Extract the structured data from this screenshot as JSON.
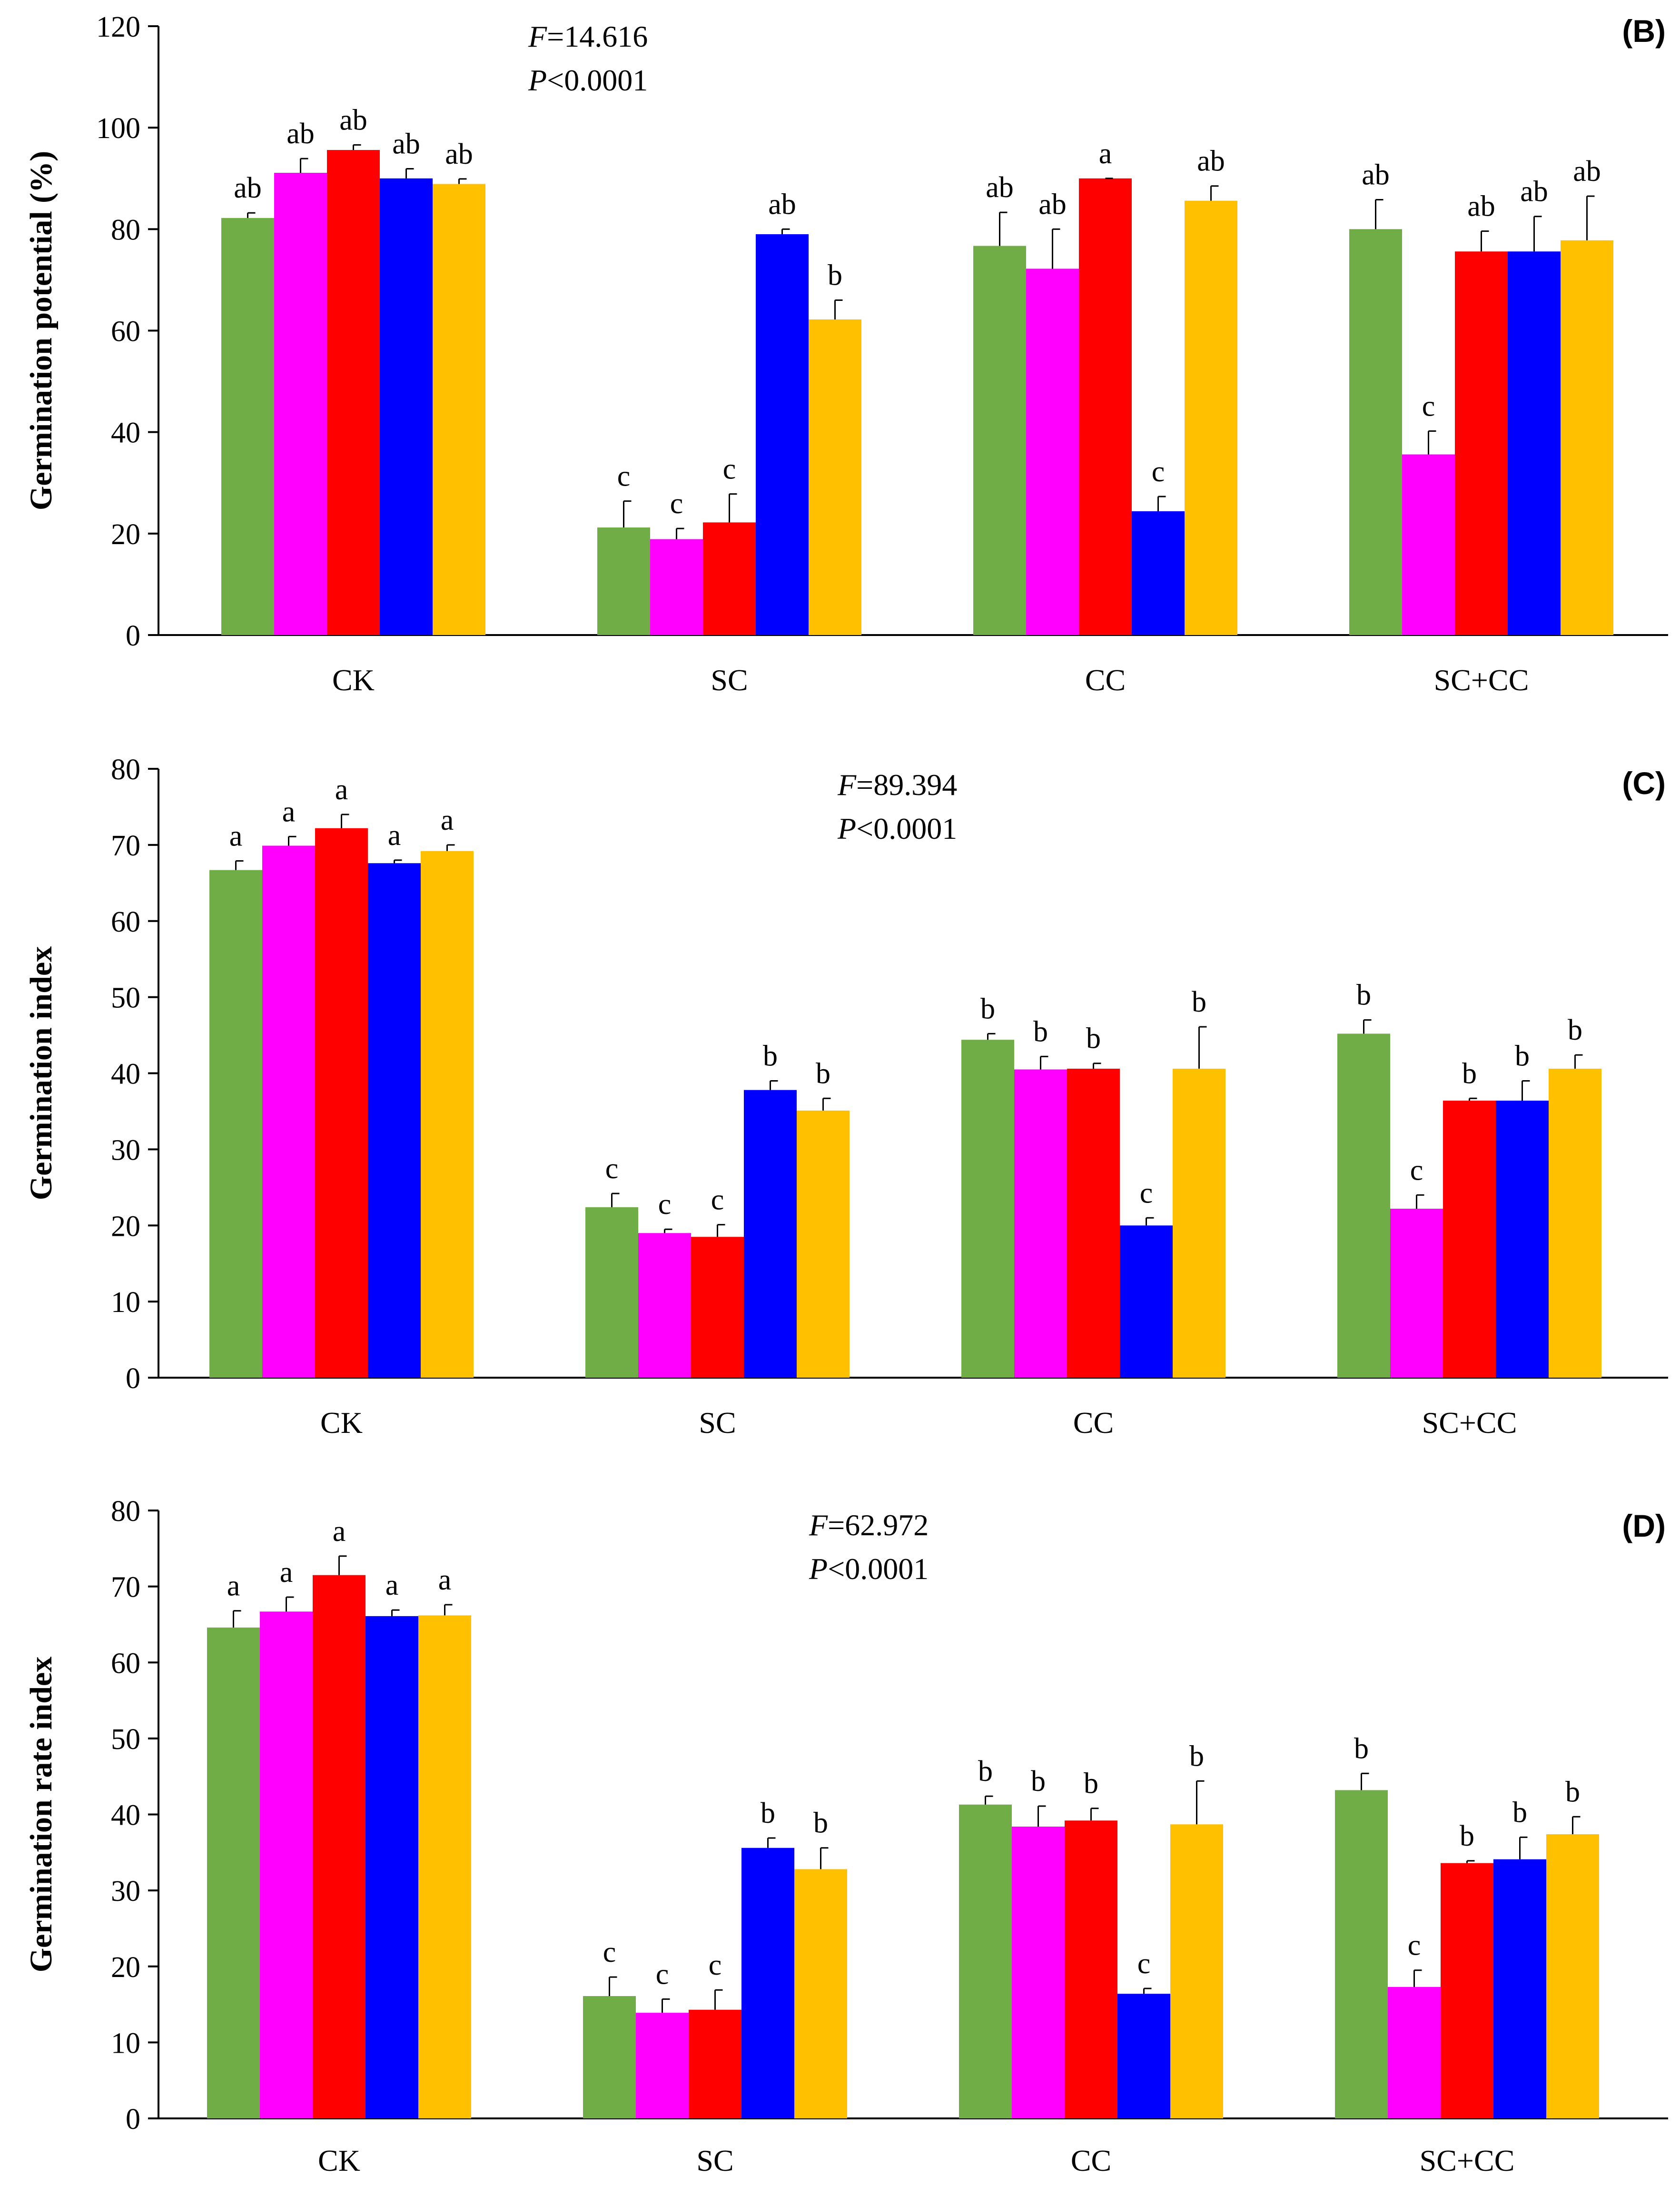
{
  "figure": {
    "categories": [
      "CK",
      "SC",
      "CC",
      "SC+CC"
    ],
    "series_colors": [
      "#70AD47",
      "#FF00FF",
      "#FF0000",
      "#0000FF",
      "#FFC000"
    ]
  },
  "chart_data": [
    {
      "type": "bar",
      "panel": "(B)",
      "title": "",
      "xlabel": "",
      "ylabel": "Germination potential (%)",
      "ylim": [
        0,
        120
      ],
      "yticks": [
        0,
        20,
        40,
        60,
        80,
        100,
        120
      ],
      "categories": [
        "CK",
        "SC",
        "CC",
        "SC+CC"
      ],
      "stat": {
        "f_label": "F",
        "f_value": "=14.616",
        "p_label": "P",
        "p_value": "<0.0001"
      },
      "series": [
        {
          "values": [
            82.2,
            21.2,
            76.7,
            80.0
          ],
          "errors": [
            1.0,
            5.2,
            6.6,
            5.8
          ],
          "letters": [
            "ab",
            "c",
            "ab",
            "ab"
          ]
        },
        {
          "values": [
            91.1,
            18.9,
            72.2,
            35.6
          ],
          "errors": [
            2.8,
            2.1,
            7.8,
            4.6
          ],
          "letters": [
            "ab",
            "c",
            "ab",
            "c"
          ]
        },
        {
          "values": [
            95.6,
            22.2,
            90.0,
            75.6
          ],
          "errors": [
            1.0,
            5.6,
            0.0,
            4.0
          ],
          "letters": [
            "ab",
            "c",
            "a",
            "ab"
          ]
        },
        {
          "values": [
            90.0,
            79.0,
            24.4,
            75.6
          ],
          "errors": [
            1.9,
            1.0,
            2.9,
            6.9
          ],
          "letters": [
            "ab",
            "ab",
            "c",
            "ab"
          ]
        },
        {
          "values": [
            88.9,
            62.2,
            85.6,
            77.8
          ],
          "errors": [
            1.0,
            3.8,
            2.9,
            8.7
          ],
          "letters": [
            "ab",
            "b",
            "ab",
            "ab"
          ]
        }
      ]
    },
    {
      "type": "bar",
      "panel": "(C)",
      "title": "",
      "xlabel": "",
      "ylabel": "Germination index",
      "ylim": [
        0,
        80
      ],
      "yticks": [
        0,
        10,
        20,
        30,
        40,
        50,
        60,
        70,
        80
      ],
      "categories": [
        "CK",
        "SC",
        "CC",
        "SC+CC"
      ],
      "stat": {
        "f_label": "F",
        "f_value": "=89.394",
        "p_label": "P",
        "p_value": "<0.0001"
      },
      "series": [
        {
          "values": [
            66.7,
            22.4,
            44.4,
            45.2
          ],
          "errors": [
            1.2,
            1.8,
            0.8,
            1.8
          ],
          "letters": [
            "a",
            "c",
            "b",
            "b"
          ]
        },
        {
          "values": [
            69.9,
            19.0,
            40.5,
            22.2
          ],
          "errors": [
            1.2,
            0.5,
            1.7,
            1.8
          ],
          "letters": [
            "a",
            "c",
            "b",
            "c"
          ]
        },
        {
          "values": [
            72.2,
            18.5,
            40.6,
            36.4
          ],
          "errors": [
            1.8,
            1.6,
            0.7,
            0.3
          ],
          "letters": [
            "a",
            "c",
            "b",
            "b"
          ]
        },
        {
          "values": [
            67.6,
            37.8,
            20.0,
            36.4
          ],
          "errors": [
            0.4,
            1.2,
            1.0,
            2.6
          ],
          "letters": [
            "a",
            "b",
            "c",
            "b"
          ]
        },
        {
          "values": [
            69.2,
            35.1,
            40.6,
            40.6
          ],
          "errors": [
            0.8,
            1.6,
            5.5,
            1.8
          ],
          "letters": [
            "a",
            "b",
            "b",
            "b"
          ]
        }
      ]
    },
    {
      "type": "bar",
      "panel": "(D)",
      "title": "",
      "xlabel": "",
      "ylabel": "Germination rate index",
      "ylim": [
        0,
        80
      ],
      "yticks": [
        0,
        10,
        20,
        30,
        40,
        50,
        60,
        70,
        80
      ],
      "categories": [
        "CK",
        "SC",
        "CC",
        "SC+CC"
      ],
      "stat": {
        "f_label": "F",
        "f_value": "=62.972",
        "p_label": "P",
        "p_value": "<0.0001"
      },
      "series": [
        {
          "values": [
            64.6,
            16.1,
            41.3,
            43.2
          ],
          "errors": [
            2.2,
            2.5,
            1.1,
            2.2
          ],
          "letters": [
            "a",
            "c",
            "b",
            "b"
          ]
        },
        {
          "values": [
            66.7,
            13.9,
            38.4,
            17.3
          ],
          "errors": [
            1.9,
            1.8,
            2.7,
            2.2
          ],
          "letters": [
            "a",
            "c",
            "b",
            "c"
          ]
        },
        {
          "values": [
            71.5,
            14.3,
            39.2,
            33.6
          ],
          "errors": [
            2.5,
            2.6,
            1.6,
            0.3
          ],
          "letters": [
            "a",
            "c",
            "b",
            "b"
          ]
        },
        {
          "values": [
            66.1,
            35.6,
            16.4,
            34.1
          ],
          "errors": [
            0.8,
            1.3,
            0.7,
            2.9
          ],
          "letters": [
            "a",
            "b",
            "c",
            "b"
          ]
        },
        {
          "values": [
            66.2,
            32.8,
            38.7,
            37.4
          ],
          "errors": [
            1.4,
            2.8,
            5.7,
            2.3
          ],
          "letters": [
            "a",
            "b",
            "b",
            "b"
          ]
        }
      ]
    }
  ]
}
